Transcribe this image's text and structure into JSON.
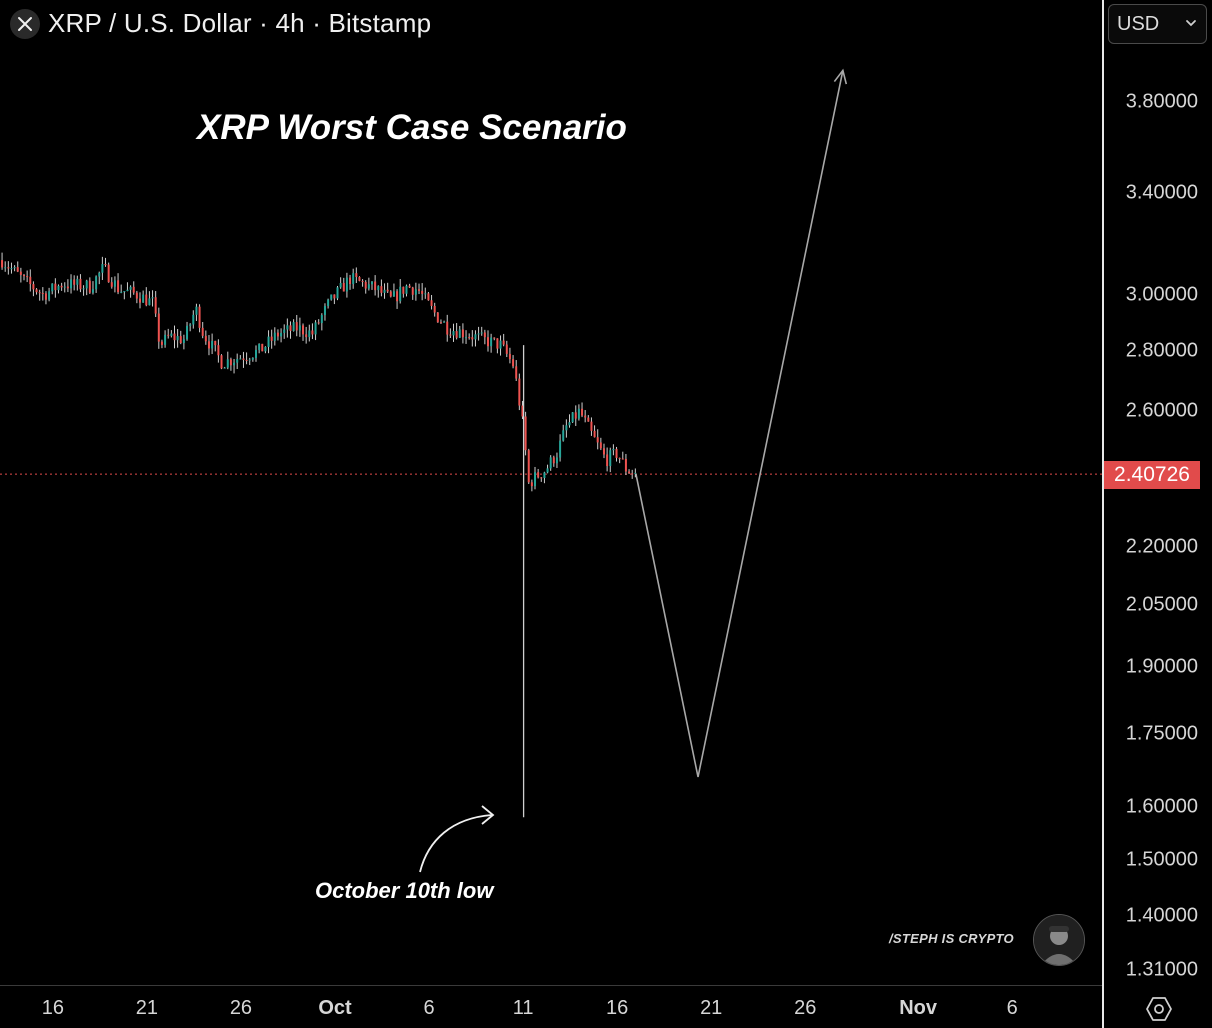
{
  "header": {
    "title": "XRP / U.S. Dollar · 4h · Bitstamp",
    "close_icon": "close-icon",
    "currency": "USD",
    "currency_icon": "chevron-down-icon"
  },
  "chart_data": {
    "type": "candlestick",
    "title": "XRP Worst Case Scenario",
    "annotation": "October 10th low",
    "watermark": "/STEPH IS CRYPTO",
    "current_price": "2.40726",
    "current_price_value": 2.40726,
    "y_scale": "log",
    "grid": false,
    "colors": {
      "up": "#26a69a",
      "down": "#ef5350",
      "wick": "#cfcfcf",
      "projection": "#a8a8a8",
      "price_line": "#e14b4b",
      "price_tag": "#e14b4b"
    },
    "y_ticks": [
      "3.80000",
      "3.40000",
      "3.00000",
      "2.80000",
      "2.60000",
      "2.20000",
      "2.05000",
      "1.90000",
      "1.75000",
      "1.60000",
      "1.50000",
      "1.40000",
      "1.31000"
    ],
    "y_tick_values": [
      3.8,
      3.4,
      3.0,
      2.8,
      2.6,
      2.2,
      2.05,
      1.9,
      1.75,
      1.6,
      1.5,
      1.4,
      1.31
    ],
    "x_ticks": [
      {
        "label": "16",
        "day": -15,
        "bold": false
      },
      {
        "label": "21",
        "day": -10,
        "bold": false
      },
      {
        "label": "26",
        "day": -5,
        "bold": false
      },
      {
        "label": "Oct",
        "day": 0,
        "bold": true
      },
      {
        "label": "6",
        "day": 5,
        "bold": false
      },
      {
        "label": "11",
        "day": 10,
        "bold": false
      },
      {
        "label": "16",
        "day": 15,
        "bold": false
      },
      {
        "label": "21",
        "day": 20,
        "bold": false
      },
      {
        "label": "26",
        "day": 25,
        "bold": false
      },
      {
        "label": "Nov",
        "day": 31,
        "bold": true
      },
      {
        "label": "6",
        "day": 36,
        "bold": false
      }
    ],
    "price_path": [
      [
        -17.7,
        3.13
      ],
      [
        -16.5,
        3.05
      ],
      [
        -15.5,
        3.0
      ],
      [
        -14.5,
        3.04
      ],
      [
        -13.0,
        3.03
      ],
      [
        -12.3,
        3.1
      ],
      [
        -11.5,
        3.02
      ],
      [
        -10.5,
        3.0
      ],
      [
        -9.7,
        2.97
      ],
      [
        -9.3,
        2.82
      ],
      [
        -8.8,
        2.85
      ],
      [
        -8.0,
        2.84
      ],
      [
        -7.4,
        2.95
      ],
      [
        -7.0,
        2.86
      ],
      [
        -6.0,
        2.76
      ],
      [
        -5.0,
        2.78
      ],
      [
        -4.0,
        2.8
      ],
      [
        -3.0,
        2.86
      ],
      [
        -2.0,
        2.88
      ],
      [
        -1.2,
        2.86
      ],
      [
        -0.3,
        2.97
      ],
      [
        0.8,
        3.06
      ],
      [
        1.5,
        3.04
      ],
      [
        2.2,
        3.02
      ],
      [
        3.0,
        2.98
      ],
      [
        3.8,
        3.03
      ],
      [
        4.4,
        3.02
      ],
      [
        5.2,
        2.94
      ],
      [
        6.0,
        2.88
      ],
      [
        7.0,
        2.86
      ],
      [
        7.8,
        2.84
      ],
      [
        8.8,
        2.82
      ],
      [
        9.5,
        2.75
      ],
      [
        10.0,
        2.55
      ],
      [
        10.3,
        2.38
      ],
      [
        10.7,
        2.4
      ],
      [
        11.2,
        2.42
      ],
      [
        11.8,
        2.47
      ],
      [
        12.3,
        2.55
      ],
      [
        13.0,
        2.6
      ],
      [
        13.7,
        2.52
      ],
      [
        14.4,
        2.45
      ],
      [
        15.0,
        2.47
      ],
      [
        15.5,
        2.42
      ],
      [
        16.0,
        2.41
      ]
    ],
    "price_range_days": [
      -17.7,
      16.0
    ],
    "october_10th_low": {
      "day": 10.0,
      "high": 2.82,
      "low": 1.58
    },
    "projection": [
      {
        "day": 16.0,
        "price": 2.40726
      },
      {
        "day": 19.3,
        "price": 1.66
      },
      {
        "day": 27.0,
        "price": 3.95
      }
    ]
  },
  "footer": {
    "settings_icon": "settings-icon"
  }
}
